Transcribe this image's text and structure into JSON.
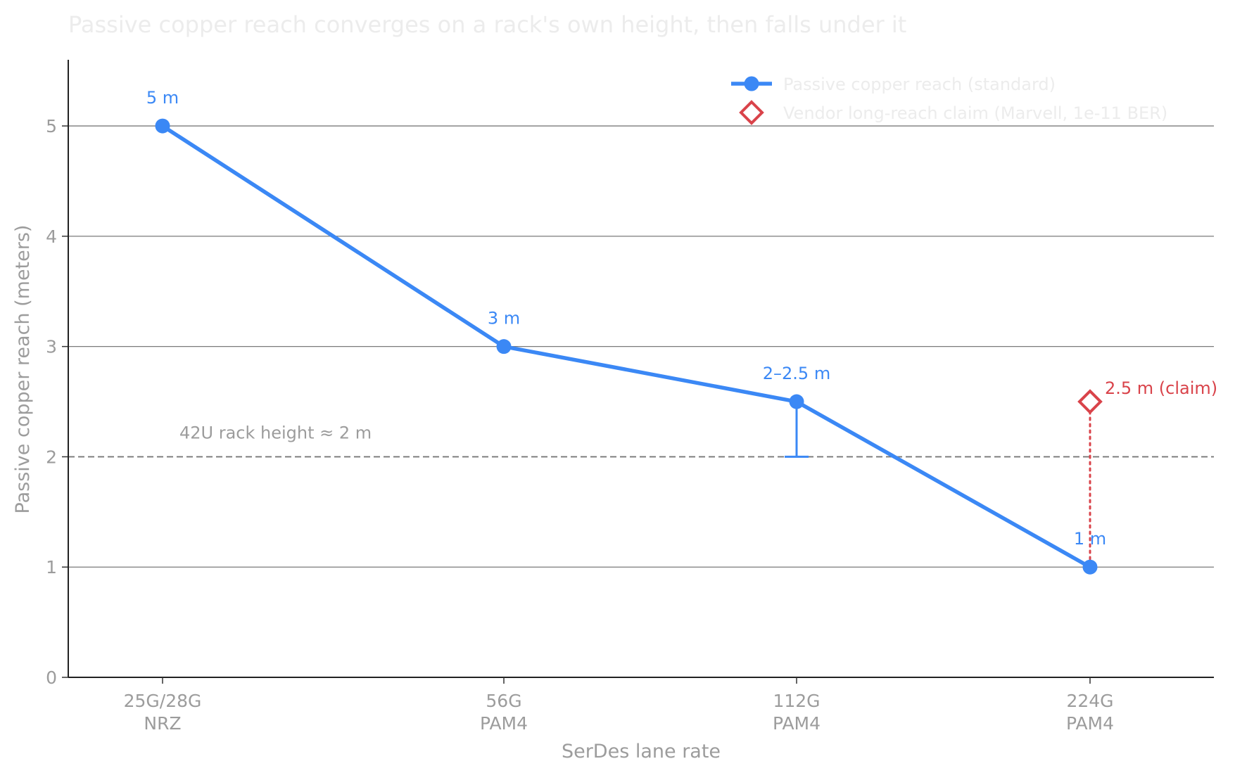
{
  "chart_data": {
    "type": "line",
    "title": "Passive copper reach converges on a rack's own height, then falls under it",
    "xlabel": "SerDes lane rate",
    "ylabel": "Passive copper reach (meters)",
    "categories": [
      [
        "25G/28G",
        "NRZ"
      ],
      [
        "56G",
        "PAM4"
      ],
      [
        "112G",
        "PAM4"
      ],
      [
        "224G",
        "PAM4"
      ]
    ],
    "ylim": [
      0,
      5.6
    ],
    "yticks": [
      0,
      1,
      2,
      3,
      4,
      5
    ],
    "grid": "horizontal",
    "legend_position": "top-right",
    "series": [
      {
        "name": "Passive copper reach (standard)",
        "color": "#3b88f5",
        "values": [
          5,
          3,
          2.5,
          1
        ],
        "range_low": [
          null,
          null,
          2,
          null
        ],
        "point_labels": [
          "5 m",
          "3 m",
          "2–2.5 m",
          "1 m"
        ]
      },
      {
        "name": "Vendor long-reach claim (Marvell, 1e-11 BER)",
        "color": "#d9434a",
        "marker": "diamond",
        "category_index": 3,
        "value": 2.5,
        "from_value": 1,
        "point_label": "2.5 m (claim)"
      }
    ],
    "reference_line": {
      "value": 2,
      "label": "42U rack height ≈ 2 m",
      "style": "dashed"
    }
  }
}
